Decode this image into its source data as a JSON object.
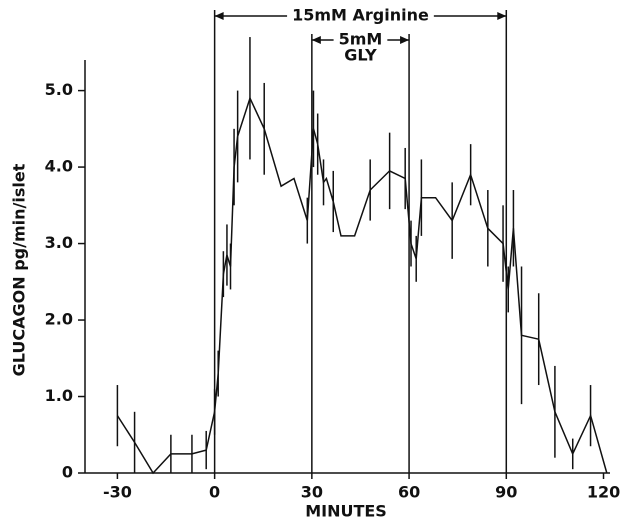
{
  "chart_data": {
    "type": "line",
    "xlabel": "MINUTES",
    "ylabel": "GLUCAGON  pg/min/islet",
    "x": [
      -30,
      -24.7,
      -19,
      -13.5,
      -7,
      -2.6,
      0,
      1.1,
      2.7,
      3.8,
      4.9,
      6,
      7.1,
      10.9,
      15.3,
      20.5,
      24.5,
      28.6,
      30.5,
      31.8,
      33.6,
      34.5,
      36.6,
      39,
      43.2,
      48,
      54,
      58.8,
      60.6,
      62.2,
      63.8,
      68.2,
      73.3,
      79,
      84.3,
      89,
      90.6,
      92.2,
      94.7,
      100,
      105,
      110.5,
      116,
      121
    ],
    "values": [
      0.75,
      0.4,
      0,
      0.25,
      0.25,
      0.3,
      0.8,
      1.3,
      2.6,
      2.85,
      2.7,
      4.0,
      4.4,
      4.9,
      4.5,
      3.75,
      3.85,
      3.3,
      4.5,
      4.3,
      3.8,
      3.85,
      3.55,
      3.1,
      3.1,
      3.7,
      3.95,
      3.85,
      3.0,
      2.8,
      3.6,
      3.6,
      3.3,
      3.9,
      3.2,
      3.0,
      2.4,
      3.2,
      1.8,
      1.75,
      0.8,
      0.25,
      0.75,
      0
    ],
    "errors": [
      0.4,
      0.4,
      null,
      0.25,
      0.25,
      0.25,
      0.3,
      0.3,
      0.3,
      0.4,
      0.3,
      0.5,
      0.6,
      0.8,
      0.6,
      null,
      null,
      0.3,
      0.5,
      0.4,
      0.3,
      null,
      0.4,
      null,
      null,
      0.4,
      0.5,
      0.4,
      0.3,
      0.3,
      0.5,
      null,
      0.5,
      0.4,
      0.5,
      0.5,
      0.3,
      0.5,
      0.9,
      0.6,
      0.6,
      0.2,
      0.4,
      null
    ],
    "color": "#111111",
    "xlim": [
      -40,
      122
    ],
    "ylim": [
      0,
      5.4
    ],
    "xticks": [
      -30,
      0,
      30,
      60,
      90,
      120
    ],
    "yticks": [
      0,
      {
        "value": 1,
        "label": "1.0"
      },
      {
        "value": 2,
        "label": "2.0"
      },
      {
        "value": 3,
        "label": "3.0"
      },
      {
        "value": 4,
        "label": "4.0"
      },
      {
        "value": 5,
        "label": "5.0"
      }
    ],
    "annotations": [
      {
        "lines": [
          "15mM Arginine"
        ],
        "start": 0,
        "end": 90
      },
      {
        "lines": [
          "5mM",
          "GLY"
        ],
        "start": 30,
        "end": 60
      }
    ]
  }
}
